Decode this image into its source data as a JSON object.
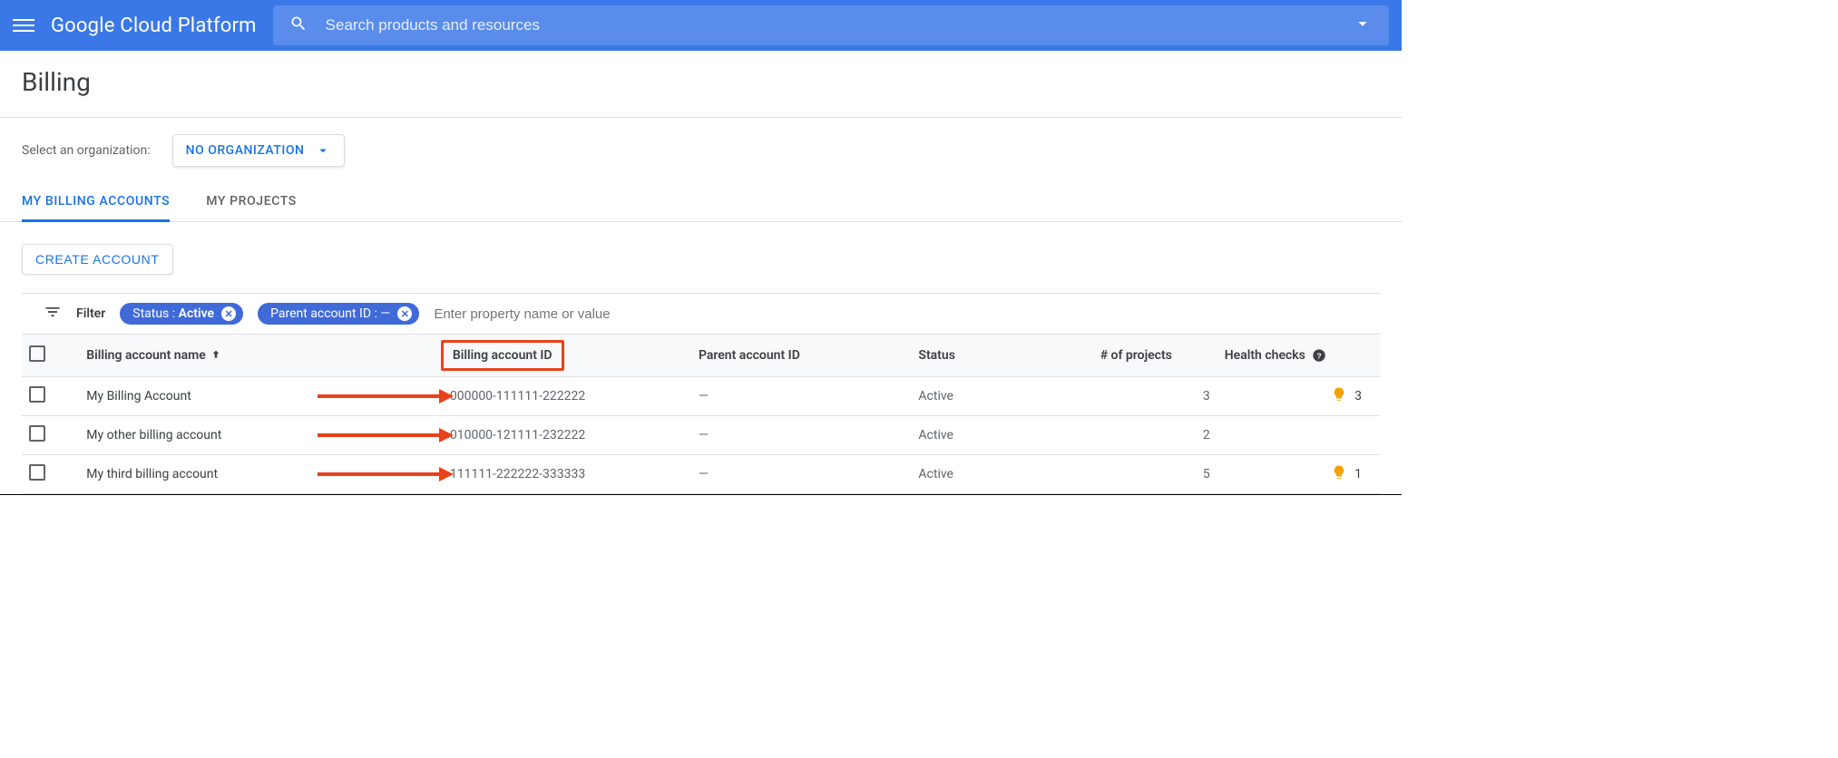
{
  "colors": {
    "topbar_bg": "#3b78e7",
    "accent": "#1a73e8",
    "chip_bg": "#3f6ad8",
    "annotation": "#e8421c",
    "bulb": "#f4a300",
    "divider": "#e0e0e0",
    "text_primary": "#3c4043",
    "text_secondary": "#5f6368",
    "header_row_bg": "#f8f9fa"
  },
  "header": {
    "brand": "Google Cloud Platform",
    "search_placeholder": "Search products and resources"
  },
  "page": {
    "title": "Billing"
  },
  "org": {
    "label": "Select an organization:",
    "selected": "NO ORGANIZATION"
  },
  "tabs": [
    {
      "label": "MY BILLING ACCOUNTS",
      "active": true
    },
    {
      "label": "MY PROJECTS",
      "active": false
    }
  ],
  "actions": {
    "create_account": "CREATE ACCOUNT"
  },
  "filter": {
    "label": "Filter",
    "chips": [
      {
        "key": "Status",
        "value": "Active"
      },
      {
        "key": "Parent account ID",
        "value": "—"
      }
    ],
    "input_placeholder": "Enter property name or value"
  },
  "table": {
    "columns": {
      "name": "Billing account name",
      "id": "Billing account ID",
      "parent": "Parent account ID",
      "status": "Status",
      "projects": "# of projects",
      "health": "Health checks"
    },
    "sort_column": "name",
    "sort_dir": "asc",
    "highlight_column": "id",
    "rows": [
      {
        "name": "My Billing Account",
        "id": "000000-111111-222222",
        "parent": "—",
        "status": "Active",
        "projects": 3,
        "health": 3
      },
      {
        "name": "My other billing account",
        "id": "010000-121111-232222",
        "parent": "—",
        "status": "Active",
        "projects": 2,
        "health": null
      },
      {
        "name": "My third billing account",
        "id": "111111-222222-333333",
        "parent": "—",
        "status": "Active",
        "projects": 5,
        "health": 1
      }
    ]
  }
}
